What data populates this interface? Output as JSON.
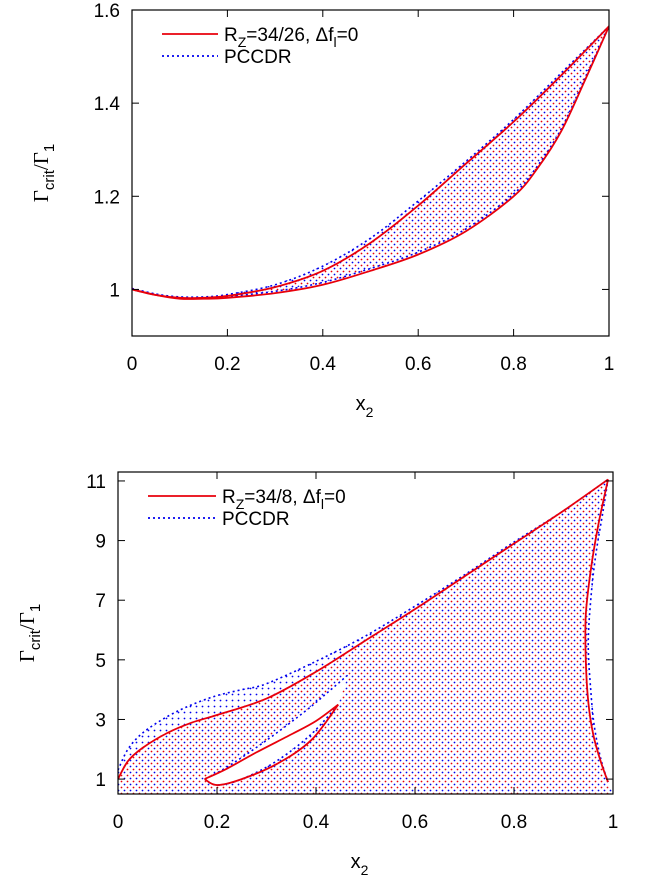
{
  "chart_data": [
    {
      "type": "line",
      "xlabel": "x",
      "xlabel_sub": "2",
      "ylabel_main": "Γ",
      "ylabel_sub1": "crit",
      "ylabel_slash": "/Γ",
      "ylabel_sub2": "1",
      "xlim": [
        0,
        1
      ],
      "ylim": [
        0.9,
        1.6
      ],
      "xticks": [
        "0",
        "0.2",
        "0.4",
        "0.6",
        "0.8",
        "1"
      ],
      "xtick_values": [
        0,
        0.2,
        0.4,
        0.6,
        0.8,
        1.0
      ],
      "yticks": [
        "1",
        "1.2",
        "1.4",
        "1.6"
      ],
      "ytick_values": [
        1.0,
        1.2,
        1.4,
        1.6
      ],
      "legend_position": "top-left",
      "legend": [
        {
          "label_main": "R",
          "label_sub": "Z",
          "label_rest": "=34/26, Δf",
          "label_sub2": "l",
          "label_end": "=0",
          "color": "#e8000b",
          "style": "solid"
        },
        {
          "label_main": "PCCDR",
          "label_sub": "",
          "label_rest": "",
          "label_sub2": "",
          "label_end": "",
          "color": "#0000ee",
          "style": "dotted"
        }
      ],
      "series": [
        {
          "name": "R_Z=34/26, Δf_l=0",
          "color": "#e8000b",
          "style": "solid",
          "upper": [
            [
              0,
              1.0
            ],
            [
              0.05,
              0.988
            ],
            [
              0.1,
              0.982
            ],
            [
              0.15,
              0.982
            ],
            [
              0.2,
              0.986
            ],
            [
              0.3,
              1.005
            ],
            [
              0.4,
              1.04
            ],
            [
              0.5,
              1.1
            ],
            [
              0.6,
              1.18
            ],
            [
              0.7,
              1.27
            ],
            [
              0.8,
              1.36
            ],
            [
              0.9,
              1.46
            ],
            [
              1.0,
              1.565
            ]
          ],
          "lower": [
            [
              0,
              1.0
            ],
            [
              0.05,
              0.988
            ],
            [
              0.1,
              0.98
            ],
            [
              0.15,
              0.98
            ],
            [
              0.2,
              0.982
            ],
            [
              0.3,
              0.992
            ],
            [
              0.4,
              1.01
            ],
            [
              0.5,
              1.04
            ],
            [
              0.6,
              1.075
            ],
            [
              0.7,
              1.125
            ],
            [
              0.8,
              1.2
            ],
            [
              0.85,
              1.26
            ],
            [
              0.9,
              1.34
            ],
            [
              0.95,
              1.45
            ],
            [
              1.0,
              1.565
            ]
          ]
        },
        {
          "name": "PCCDR",
          "color": "#0000ee",
          "style": "dotted",
          "upper": [
            [
              0,
              1.002
            ],
            [
              0.05,
              0.99
            ],
            [
              0.1,
              0.984
            ],
            [
              0.15,
              0.984
            ],
            [
              0.2,
              0.989
            ],
            [
              0.3,
              1.01
            ],
            [
              0.4,
              1.05
            ],
            [
              0.5,
              1.11
            ],
            [
              0.6,
              1.19
            ],
            [
              0.7,
              1.275
            ],
            [
              0.8,
              1.365
            ],
            [
              0.9,
              1.465
            ],
            [
              1.0,
              1.565
            ]
          ],
          "lower": [
            [
              0,
              1.002
            ],
            [
              0.05,
              0.99
            ],
            [
              0.1,
              0.982
            ],
            [
              0.15,
              0.982
            ],
            [
              0.2,
              0.985
            ],
            [
              0.3,
              0.996
            ],
            [
              0.4,
              1.015
            ],
            [
              0.5,
              1.045
            ],
            [
              0.6,
              1.08
            ],
            [
              0.7,
              1.13
            ],
            [
              0.8,
              1.205
            ],
            [
              0.85,
              1.265
            ],
            [
              0.9,
              1.345
            ],
            [
              0.95,
              1.455
            ],
            [
              1.0,
              1.565
            ]
          ]
        }
      ]
    },
    {
      "type": "line",
      "xlabel": "x",
      "xlabel_sub": "2",
      "ylabel_main": "Γ",
      "ylabel_sub1": "crit",
      "ylabel_slash": "/Γ",
      "ylabel_sub2": "1",
      "xlim": [
        0,
        1
      ],
      "ylim": [
        0.5,
        11.3
      ],
      "xticks": [
        "0",
        "0.2",
        "0.4",
        "0.6",
        "0.8",
        "1"
      ],
      "xtick_values": [
        0,
        0.2,
        0.4,
        0.6,
        0.8,
        1.0
      ],
      "yticks": [
        "1",
        "3",
        "5",
        "7",
        "9",
        "11"
      ],
      "ytick_values": [
        1,
        3,
        5,
        7,
        9,
        11
      ],
      "legend_position": "top-left",
      "legend": [
        {
          "label_main": "R",
          "label_sub": "Z",
          "label_rest": "=34/8, Δf",
          "label_sub2": "l",
          "label_end": "=0",
          "color": "#e8000b",
          "style": "solid"
        },
        {
          "label_main": "PCCDR",
          "label_sub": "",
          "label_rest": "",
          "label_sub2": "",
          "label_end": "",
          "color": "#0000ee",
          "style": "dotted"
        }
      ],
      "series": [
        {
          "name": "R_Z=34/8, Δf_l=0",
          "color": "#e8000b",
          "style": "solid",
          "outer_upper": [
            [
              0,
              1.0
            ],
            [
              0.02,
              1.6
            ],
            [
              0.05,
              2.05
            ],
            [
              0.1,
              2.55
            ],
            [
              0.15,
              2.9
            ],
            [
              0.2,
              3.15
            ],
            [
              0.3,
              3.7
            ],
            [
              0.4,
              4.6
            ],
            [
              0.5,
              5.65
            ],
            [
              0.6,
              6.7
            ],
            [
              0.7,
              7.8
            ],
            [
              0.8,
              8.9
            ],
            [
              0.9,
              10.0
            ],
            [
              0.99,
              11.05
            ]
          ],
          "right_branch": [
            [
              0.99,
              11.05
            ],
            [
              0.97,
              9.5
            ],
            [
              0.955,
              8.0
            ],
            [
              0.945,
              6.5
            ],
            [
              0.945,
              5.0
            ],
            [
              0.95,
              3.6
            ],
            [
              0.96,
              2.5
            ],
            [
              0.975,
              1.6
            ],
            [
              0.99,
              0.9
            ]
          ],
          "inner_loop_upper": [
            [
              0.175,
              1.0
            ],
            [
              0.22,
              1.35
            ],
            [
              0.28,
              1.9
            ],
            [
              0.35,
              2.5
            ],
            [
              0.4,
              2.95
            ],
            [
              0.445,
              3.5
            ]
          ],
          "inner_loop_lower": [
            [
              0.175,
              1.0
            ],
            [
              0.2,
              0.8
            ],
            [
              0.25,
              1.0
            ],
            [
              0.32,
              1.5
            ],
            [
              0.39,
              2.3
            ],
            [
              0.445,
              3.5
            ]
          ]
        },
        {
          "name": "PCCDR",
          "color": "#0000ee",
          "style": "dotted",
          "outer_upper": [
            [
              0,
              1.3
            ],
            [
              0.02,
              2.0
            ],
            [
              0.05,
              2.55
            ],
            [
              0.1,
              3.1
            ],
            [
              0.15,
              3.5
            ],
            [
              0.2,
              3.8
            ],
            [
              0.25,
              4.0
            ],
            [
              0.3,
              4.2
            ],
            [
              0.4,
              4.95
            ],
            [
              0.5,
              5.8
            ],
            [
              0.6,
              6.8
            ],
            [
              0.7,
              7.85
            ],
            [
              0.8,
              8.95
            ],
            [
              0.9,
              10.0
            ],
            [
              0.99,
              11.05
            ]
          ],
          "right_branch": [
            [
              0.99,
              11.05
            ],
            [
              0.98,
              10.0
            ],
            [
              0.965,
              8.5
            ],
            [
              0.955,
              7.0
            ],
            [
              0.95,
              5.5
            ],
            [
              0.955,
              4.0
            ],
            [
              0.962,
              2.8
            ],
            [
              0.975,
              1.7
            ],
            [
              0.99,
              0.9
            ]
          ],
          "inner_loop_upper": [
            [
              0.175,
              1.0
            ],
            [
              0.22,
              1.4
            ],
            [
              0.3,
              2.3
            ],
            [
              0.38,
              3.3
            ],
            [
              0.43,
              4.0
            ],
            [
              0.465,
              4.5
            ]
          ],
          "inner_loop_lower": [
            [
              0.175,
              1.0
            ],
            [
              0.2,
              0.8
            ],
            [
              0.25,
              1.0
            ],
            [
              0.32,
              1.6
            ],
            [
              0.39,
              2.5
            ],
            [
              0.445,
              3.5
            ]
          ]
        }
      ]
    }
  ]
}
